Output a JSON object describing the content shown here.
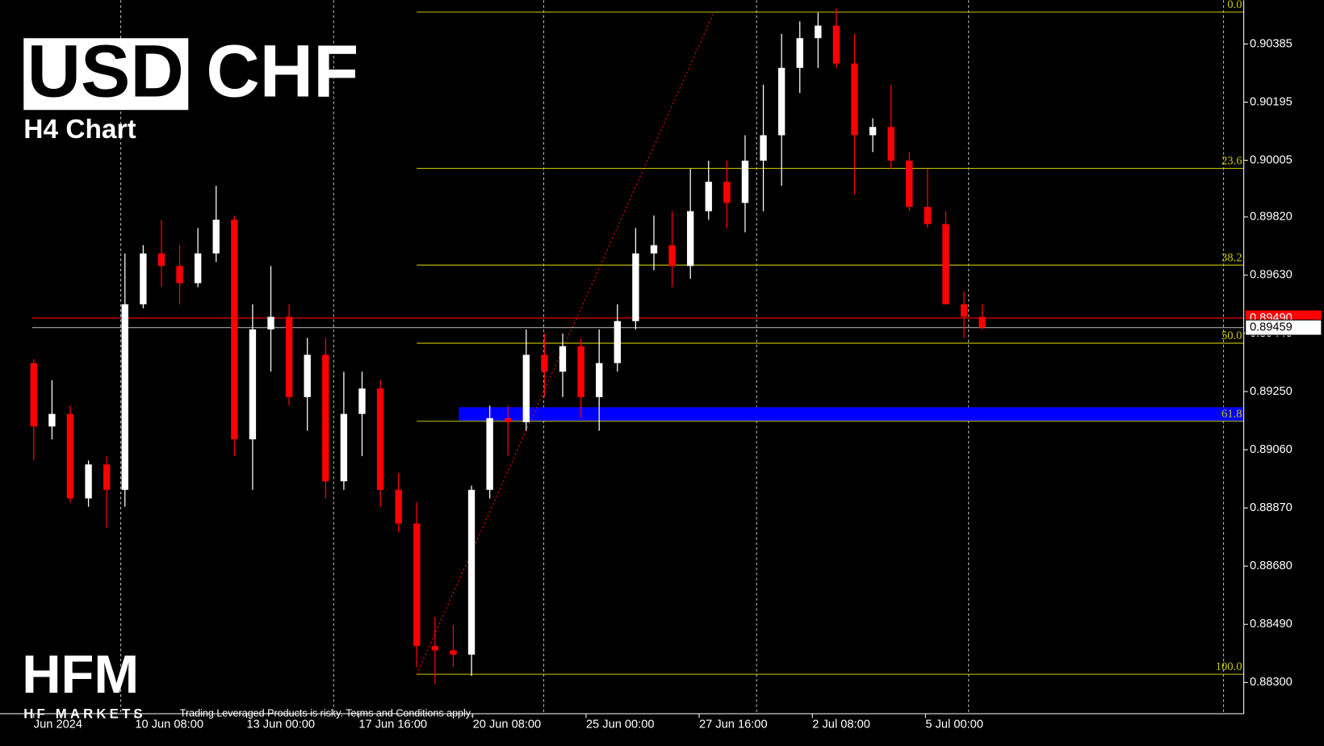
{
  "chart_data": {
    "type": "candlestick",
    "symbol": [
      "USD",
      "CHF"
    ],
    "subtitle": "H4 Chart",
    "up_color": "#ffffff",
    "down_color": "#ff0000",
    "series": {
      "open": [
        0.89343,
        0.89136,
        0.89177,
        0.88901,
        0.89012,
        0.88929,
        0.89535,
        0.89701,
        0.8966,
        0.89604,
        0.89701,
        0.89811,
        0.89094,
        0.89453,
        0.89494,
        0.89232,
        0.8937,
        0.88957,
        0.89177,
        0.8926,
        0.88929,
        0.88819,
        0.88419,
        0.88405,
        0.88391,
        0.88929,
        0.89163,
        0.8915,
        0.8937,
        0.89315,
        0.89398,
        0.89232,
        0.89343,
        0.8948,
        0.89701,
        0.89728,
        0.8966,
        0.89839,
        0.89935,
        0.89866,
        0.90004,
        0.90087,
        0.90307,
        0.90404,
        0.90445,
        0.90321,
        0.90087,
        0.90114,
        0.90004,
        0.89853,
        0.89797,
        0.89535,
        0.89494
      ],
      "high": [
        0.89356,
        0.89287,
        0.89204,
        0.89025,
        0.89039,
        0.89701,
        0.89728,
        0.89811,
        0.89728,
        0.89784,
        0.89922,
        0.89825,
        0.89535,
        0.8966,
        0.89535,
        0.89425,
        0.89425,
        0.89315,
        0.89315,
        0.89287,
        0.88984,
        0.88888,
        0.88515,
        0.88488,
        0.88943,
        0.89204,
        0.89204,
        0.89453,
        0.89439,
        0.89439,
        0.89425,
        0.89453,
        0.89535,
        0.89784,
        0.89825,
        0.89839,
        0.89977,
        0.90004,
        0.90004,
        0.90087,
        0.90252,
        0.90418,
        0.90459,
        0.90487,
        0.905,
        0.90418,
        0.90142,
        0.90252,
        0.90032,
        0.89977,
        0.89839,
        0.89577,
        0.89535
      ],
      "low": [
        0.89025,
        0.89094,
        0.88888,
        0.88874,
        0.88805,
        0.88874,
        0.89522,
        0.89591,
        0.89535,
        0.89591,
        0.89673,
        0.89039,
        0.88929,
        0.89315,
        0.89204,
        0.89122,
        0.88901,
        0.88929,
        0.89039,
        0.88874,
        0.88791,
        0.8835,
        0.88295,
        0.8835,
        0.88322,
        0.88901,
        0.89039,
        0.89122,
        0.89232,
        0.89232,
        0.89163,
        0.89122,
        0.89315,
        0.89453,
        0.89646,
        0.89591,
        0.89618,
        0.89811,
        0.89784,
        0.8977,
        0.89839,
        0.89922,
        0.90225,
        0.90307,
        0.90307,
        0.89894,
        0.90032,
        0.89977,
        0.89839,
        0.89784,
        0.89535,
        0.89425,
        0.89453
      ],
      "close": [
        0.89136,
        0.89177,
        0.88901,
        0.89012,
        0.88929,
        0.89535,
        0.89701,
        0.8966,
        0.89604,
        0.89701,
        0.89811,
        0.89094,
        0.89453,
        0.89494,
        0.89232,
        0.8937,
        0.88957,
        0.89177,
        0.8926,
        0.88929,
        0.88819,
        0.88419,
        0.88405,
        0.88391,
        0.88929,
        0.89163,
        0.8915,
        0.8937,
        0.89315,
        0.89398,
        0.89232,
        0.89343,
        0.8948,
        0.89701,
        0.89728,
        0.8966,
        0.89839,
        0.89935,
        0.89866,
        0.90004,
        0.90087,
        0.90307,
        0.90404,
        0.90445,
        0.90321,
        0.90087,
        0.90114,
        0.90004,
        0.89853,
        0.89797,
        0.89535,
        0.89494,
        0.89459
      ]
    },
    "xlim": [
      -1.85,
      66.34
    ],
    "xticks": [
      {
        "value": 0,
        "label": "Jun 2024"
      },
      {
        "value": 5.56,
        "label": "10 Jun 08:00"
      },
      {
        "value": 11.67,
        "label": "13 Jun 00:00"
      },
      {
        "value": 17.82,
        "label": "17 Jun 16:00"
      },
      {
        "value": 24.07,
        "label": "20 Jun 08:00"
      },
      {
        "value": 30.28,
        "label": "25 Jun 00:00"
      },
      {
        "value": 36.48,
        "label": "27 Jun 16:00"
      },
      {
        "value": 42.69,
        "label": "2 Jul 08:00"
      },
      {
        "value": 48.89,
        "label": "5 Jul 00:00"
      }
    ],
    "separators": [
      4.77,
      16.44,
      27.96,
      39.63,
      51.25,
      65.23
    ],
    "ylim": [
      0.88198,
      0.90528
    ],
    "yticks": [
      0.90385,
      0.90195,
      0.90005,
      {
        "value": 0.8982,
        "label": "0.89820"
      },
      {
        "value": 0.8963,
        "label": "0.89630"
      },
      {
        "value": 0.8944,
        "label": "0.89440"
      },
      {
        "value": 0.8925,
        "label": "0.89250"
      },
      {
        "value": 0.8906,
        "label": "0.89060"
      },
      {
        "value": 0.8887,
        "label": "0.88870"
      },
      {
        "value": 0.8868,
        "label": "0.88680"
      },
      {
        "value": 0.8849,
        "label": "0.88490"
      },
      {
        "value": 0.883,
        "label": "0.88300"
      }
    ],
    "fibonacci": {
      "color": "#c8c800",
      "start_x": 21,
      "anchors": [
        {
          "x": 21,
          "price": 0.88327
        },
        {
          "x": 37.3,
          "price": 0.90489
        }
      ],
      "levels": [
        {
          "label": "0.0",
          "price": 0.90489
        },
        {
          "label": "23.6",
          "price": 0.89979
        },
        {
          "label": "38.2",
          "price": 0.89663
        },
        {
          "label": "50.0",
          "price": 0.89408
        },
        {
          "label": "61.8",
          "price": 0.89153
        },
        {
          "label": "100.0",
          "price": 0.88327
        }
      ]
    },
    "zone": {
      "from": 0.89155,
      "to": 0.89199,
      "start_x": 23.3,
      "color": "#0000ff"
    },
    "ask_line": {
      "value": 0.8949,
      "label": "0.89490",
      "color": "#ff0000"
    },
    "bid_line": {
      "value": 0.89459,
      "color": "#c0c0c0"
    }
  },
  "branding": {
    "logo": "HFM",
    "name": "HF MARKETS",
    "disclaimer": "Trading Leveraged Products is risky. Terms and Conditions apply."
  }
}
